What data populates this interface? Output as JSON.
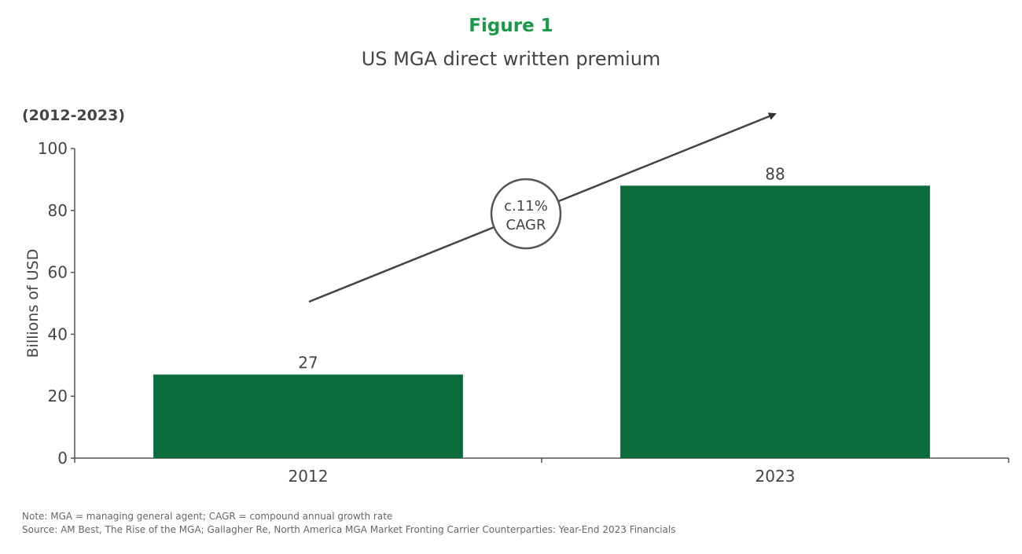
{
  "figure_label": "Figure 1",
  "colors": {
    "bar": "#0b6b3b",
    "figure_label": "#1a9a48",
    "text": "#444444"
  },
  "chart_data": {
    "type": "bar",
    "title": "US MGA direct written premium",
    "subtitle": "(2012-2023)",
    "categories": [
      "2012",
      "2023"
    ],
    "values": [
      27,
      88
    ],
    "data_labels": [
      "27",
      "88"
    ],
    "ylabel": "Billions of USD",
    "xlabel": "",
    "ylim": [
      0,
      100
    ],
    "yticks": [
      0,
      20,
      40,
      60,
      80,
      100
    ],
    "grid": false,
    "annotation": {
      "line1": "c.11%",
      "line2": "CAGR"
    }
  },
  "notes": {
    "note": "Note: MGA = managing general agent; CAGR = compound annual growth rate",
    "source": "Source: AM Best, The Rise of the MGA; Gallagher Re, North America MGA Market Fronting Carrier Counterparties: Year-End 2023 Financials"
  }
}
